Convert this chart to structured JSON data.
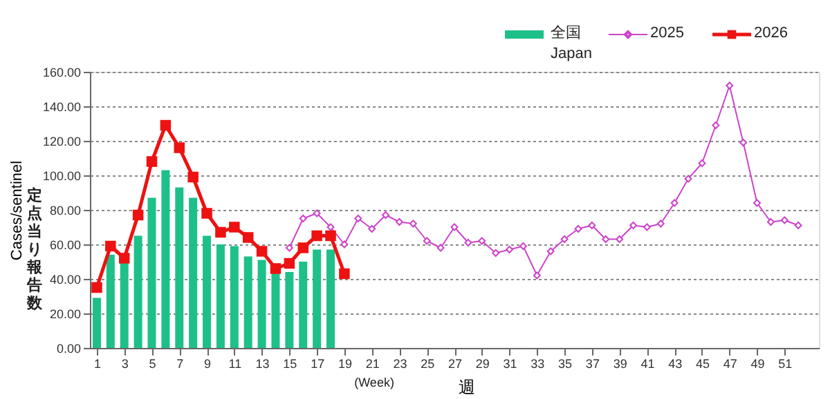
{
  "chart_data": {
    "type": "bar",
    "x": [
      1,
      2,
      3,
      4,
      5,
      6,
      7,
      8,
      9,
      10,
      11,
      12,
      13,
      14,
      15,
      16,
      17,
      18,
      19,
      20,
      21,
      22,
      23,
      24,
      25,
      26,
      27,
      28,
      29,
      30,
      31,
      32,
      33,
      34,
      35,
      36,
      37,
      38,
      39,
      40,
      41,
      42,
      43,
      44,
      45,
      46,
      47,
      48,
      49,
      50,
      51,
      52
    ],
    "xlim": [
      0.5,
      53.5
    ],
    "xticks": [
      1,
      3,
      5,
      7,
      9,
      11,
      13,
      15,
      17,
      19,
      21,
      23,
      25,
      27,
      29,
      31,
      33,
      35,
      37,
      39,
      41,
      43,
      45,
      47,
      49,
      51
    ],
    "ylim": [
      0,
      160
    ],
    "yticks": [
      {
        "value": 0,
        "label": "0.00"
      },
      {
        "value": 20,
        "label": "20.00"
      },
      {
        "value": 40,
        "label": "40.00"
      },
      {
        "value": 60,
        "label": "60.00"
      },
      {
        "value": 80,
        "label": "80.00"
      },
      {
        "value": 100,
        "label": "100.00"
      },
      {
        "value": 120,
        "label": "120.00"
      },
      {
        "value": 140,
        "label": "140.00"
      },
      {
        "value": 160,
        "label": "160.00"
      }
    ],
    "ylabel": "Cases/sentinel",
    "xlabel": "週",
    "annotations": [
      "定点当り報告数",
      "(Week)"
    ],
    "grid": "y",
    "legend": "top right",
    "series": [
      {
        "name": "全国\nJapan",
        "type": "bar",
        "color": "#1ec08a",
        "values": [
          29,
          54,
          50,
          65,
          87,
          103,
          93,
          87,
          65,
          60,
          59,
          53,
          51,
          44,
          44,
          50,
          57,
          57,
          null,
          null,
          null,
          null,
          null,
          null,
          null,
          null,
          null,
          null,
          null,
          null,
          null,
          null,
          null,
          null,
          null,
          null,
          null,
          null,
          null,
          null,
          null,
          null,
          null,
          null,
          null,
          null,
          null,
          null,
          null,
          null,
          null,
          null
        ]
      },
      {
        "name": "2025",
        "type": "line",
        "color": "#cc44cc",
        "marker": "diamond",
        "line_style": "solid",
        "values": [
          null,
          null,
          null,
          null,
          null,
          null,
          null,
          null,
          null,
          null,
          null,
          null,
          null,
          null,
          58,
          75,
          78,
          70,
          60,
          75,
          69,
          77,
          73,
          72,
          62,
          58,
          70,
          61,
          62,
          55,
          57,
          59,
          42,
          56,
          63,
          69,
          71,
          63,
          63,
          71,
          70,
          72,
          84,
          98,
          107,
          129,
          152,
          119,
          84,
          73,
          74,
          71
        ]
      },
      {
        "name": "2026",
        "type": "line",
        "color": "#ee1111",
        "marker": "square",
        "line_style": "solid",
        "values": [
          35,
          59,
          52,
          77,
          108,
          129,
          116,
          99,
          78,
          67,
          70,
          64,
          56,
          46,
          49,
          58,
          65,
          65,
          43,
          null,
          null,
          null,
          null,
          null,
          null,
          null,
          null,
          null,
          null,
          null,
          null,
          null,
          null,
          null,
          null,
          null,
          null,
          null,
          null,
          null,
          null,
          null,
          null,
          null,
          null,
          null,
          null,
          null,
          null,
          null,
          null,
          null
        ]
      }
    ]
  }
}
